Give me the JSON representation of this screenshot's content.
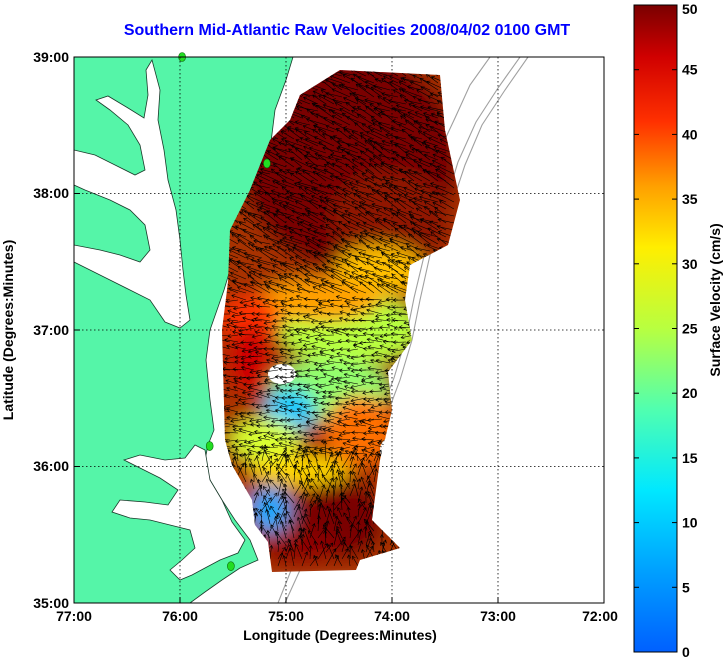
{
  "title": "Southern Mid-Atlantic Raw Velocities 2008/04/02 0100 GMT",
  "x_axis": {
    "label": "Longitude (Degrees:Minutes)",
    "ticks": [
      "77:00",
      "76:00",
      "75:00",
      "74:00",
      "73:00",
      "72:00"
    ],
    "range": [
      -77,
      -72
    ]
  },
  "y_axis": {
    "label": "Latitude (Degrees:Minutes)",
    "ticks": [
      "39:00",
      "38:00",
      "37:00",
      "36:00",
      "35:00"
    ],
    "range": [
      35,
      39
    ]
  },
  "colorbar": {
    "label": "Surface Velocity (cm/s)",
    "ticks": [
      "0",
      "5",
      "10",
      "15",
      "20",
      "25",
      "30",
      "35",
      "40",
      "45",
      "50"
    ],
    "range": [
      0,
      50
    ],
    "colormap": "jet"
  },
  "colors": {
    "land": "#55f5a8",
    "water": "#ffffff",
    "title": "#0000ff",
    "grid": "#000000",
    "bathymetry": "#a0a0a0",
    "station": "#22dd22",
    "arrow": "#000000"
  },
  "chart_data": {
    "type": "heatmap",
    "title": "Southern Mid-Atlantic Raw Velocities 2008/04/02 0100 GMT",
    "xlabel": "Longitude (Degrees:Minutes)",
    "ylabel": "Latitude (Degrees:Minutes)",
    "xlim": [
      -77,
      -72
    ],
    "ylim": [
      35,
      39
    ],
    "grid": true,
    "zlabel": "Surface Velocity (cm/s)",
    "zlim": [
      0,
      50
    ],
    "regions": [
      {
        "lon": -74.6,
        "lat": 38.2,
        "speed": 48
      },
      {
        "lon": -74.4,
        "lat": 37.8,
        "speed": 46
      },
      {
        "lon": -74.3,
        "lat": 37.3,
        "speed": 33
      },
      {
        "lon": -74.5,
        "lat": 37.0,
        "speed": 24
      },
      {
        "lon": -75.3,
        "lat": 36.9,
        "speed": 40
      },
      {
        "lon": -75.0,
        "lat": 36.6,
        "speed": 22
      },
      {
        "lon": -74.9,
        "lat": 36.3,
        "speed": 11
      },
      {
        "lon": -74.3,
        "lat": 36.1,
        "speed": 36
      },
      {
        "lon": -75.1,
        "lat": 35.7,
        "speed": 10
      },
      {
        "lon": -74.5,
        "lat": 35.6,
        "speed": 45
      },
      {
        "lon": -74.8,
        "lat": 35.3,
        "speed": 47
      }
    ],
    "stations": [
      {
        "lon": -75.98,
        "lat": 39.0
      },
      {
        "lon": -75.18,
        "lat": 38.22
      },
      {
        "lon": -75.72,
        "lat": 36.15
      },
      {
        "lon": -75.52,
        "lat": 35.27
      }
    ]
  }
}
